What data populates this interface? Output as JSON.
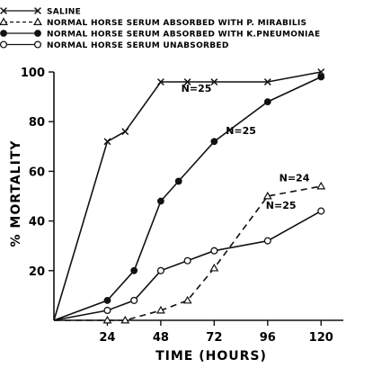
{
  "chart_data": {
    "type": "line",
    "title": "",
    "xlabel": "TIME (HOURS)",
    "ylabel": "% MORTALITY",
    "xlim": [
      0,
      130
    ],
    "ylim": [
      0,
      100
    ],
    "xticks": [
      24,
      48,
      72,
      96,
      120
    ],
    "xtick_labels": [
      "24",
      "48",
      "72",
      "96",
      "120"
    ],
    "yticks": [
      20,
      40,
      60,
      80,
      100
    ],
    "ytick_labels": [
      "20",
      "40",
      "60",
      "80",
      "100"
    ],
    "grid": false,
    "legend_position": "top-left",
    "series": [
      {
        "name": "SALINE",
        "marker": "x",
        "line": "solid",
        "color": "#111111",
        "points": [
          [
            0,
            0
          ],
          [
            24,
            72
          ],
          [
            32,
            76
          ],
          [
            48,
            96
          ],
          [
            60,
            96
          ],
          [
            72,
            96
          ],
          [
            96,
            96
          ],
          [
            120,
            100
          ]
        ]
      },
      {
        "name": "NORMAL HORSE SERUM ABSORBED WITH P. MIRABILIS",
        "marker": "triangle-open",
        "line": "dashed",
        "color": "#111111",
        "points": [
          [
            0,
            0
          ],
          [
            24,
            0
          ],
          [
            32,
            0
          ],
          [
            48,
            4
          ],
          [
            60,
            8
          ],
          [
            72,
            21
          ],
          [
            96,
            50
          ],
          [
            120,
            54
          ]
        ]
      },
      {
        "name": "NORMAL HORSE SERUM ABSORBED WITH K.PNEUMONIAE",
        "marker": "circle-filled",
        "line": "solid",
        "color": "#111111",
        "points": [
          [
            0,
            0
          ],
          [
            24,
            8
          ],
          [
            36,
            20
          ],
          [
            48,
            48
          ],
          [
            56,
            56
          ],
          [
            72,
            72
          ],
          [
            96,
            88
          ],
          [
            120,
            98
          ]
        ]
      },
      {
        "name": "NORMAL HORSE SERUM UNABSORBED",
        "marker": "circle-open",
        "line": "solid",
        "color": "#111111",
        "points": [
          [
            0,
            0
          ],
          [
            24,
            4
          ],
          [
            36,
            8
          ],
          [
            48,
            20
          ],
          [
            60,
            24
          ],
          [
            72,
            28
          ],
          [
            96,
            32
          ],
          [
            120,
            44
          ]
        ]
      }
    ],
    "annotations": [
      {
        "text": "N=25",
        "x": 64,
        "y": 92
      },
      {
        "text": "N=25",
        "x": 84,
        "y": 75
      },
      {
        "text": "N=24",
        "x": 108,
        "y": 56
      },
      {
        "text": "N=25",
        "x": 102,
        "y": 45
      }
    ]
  }
}
